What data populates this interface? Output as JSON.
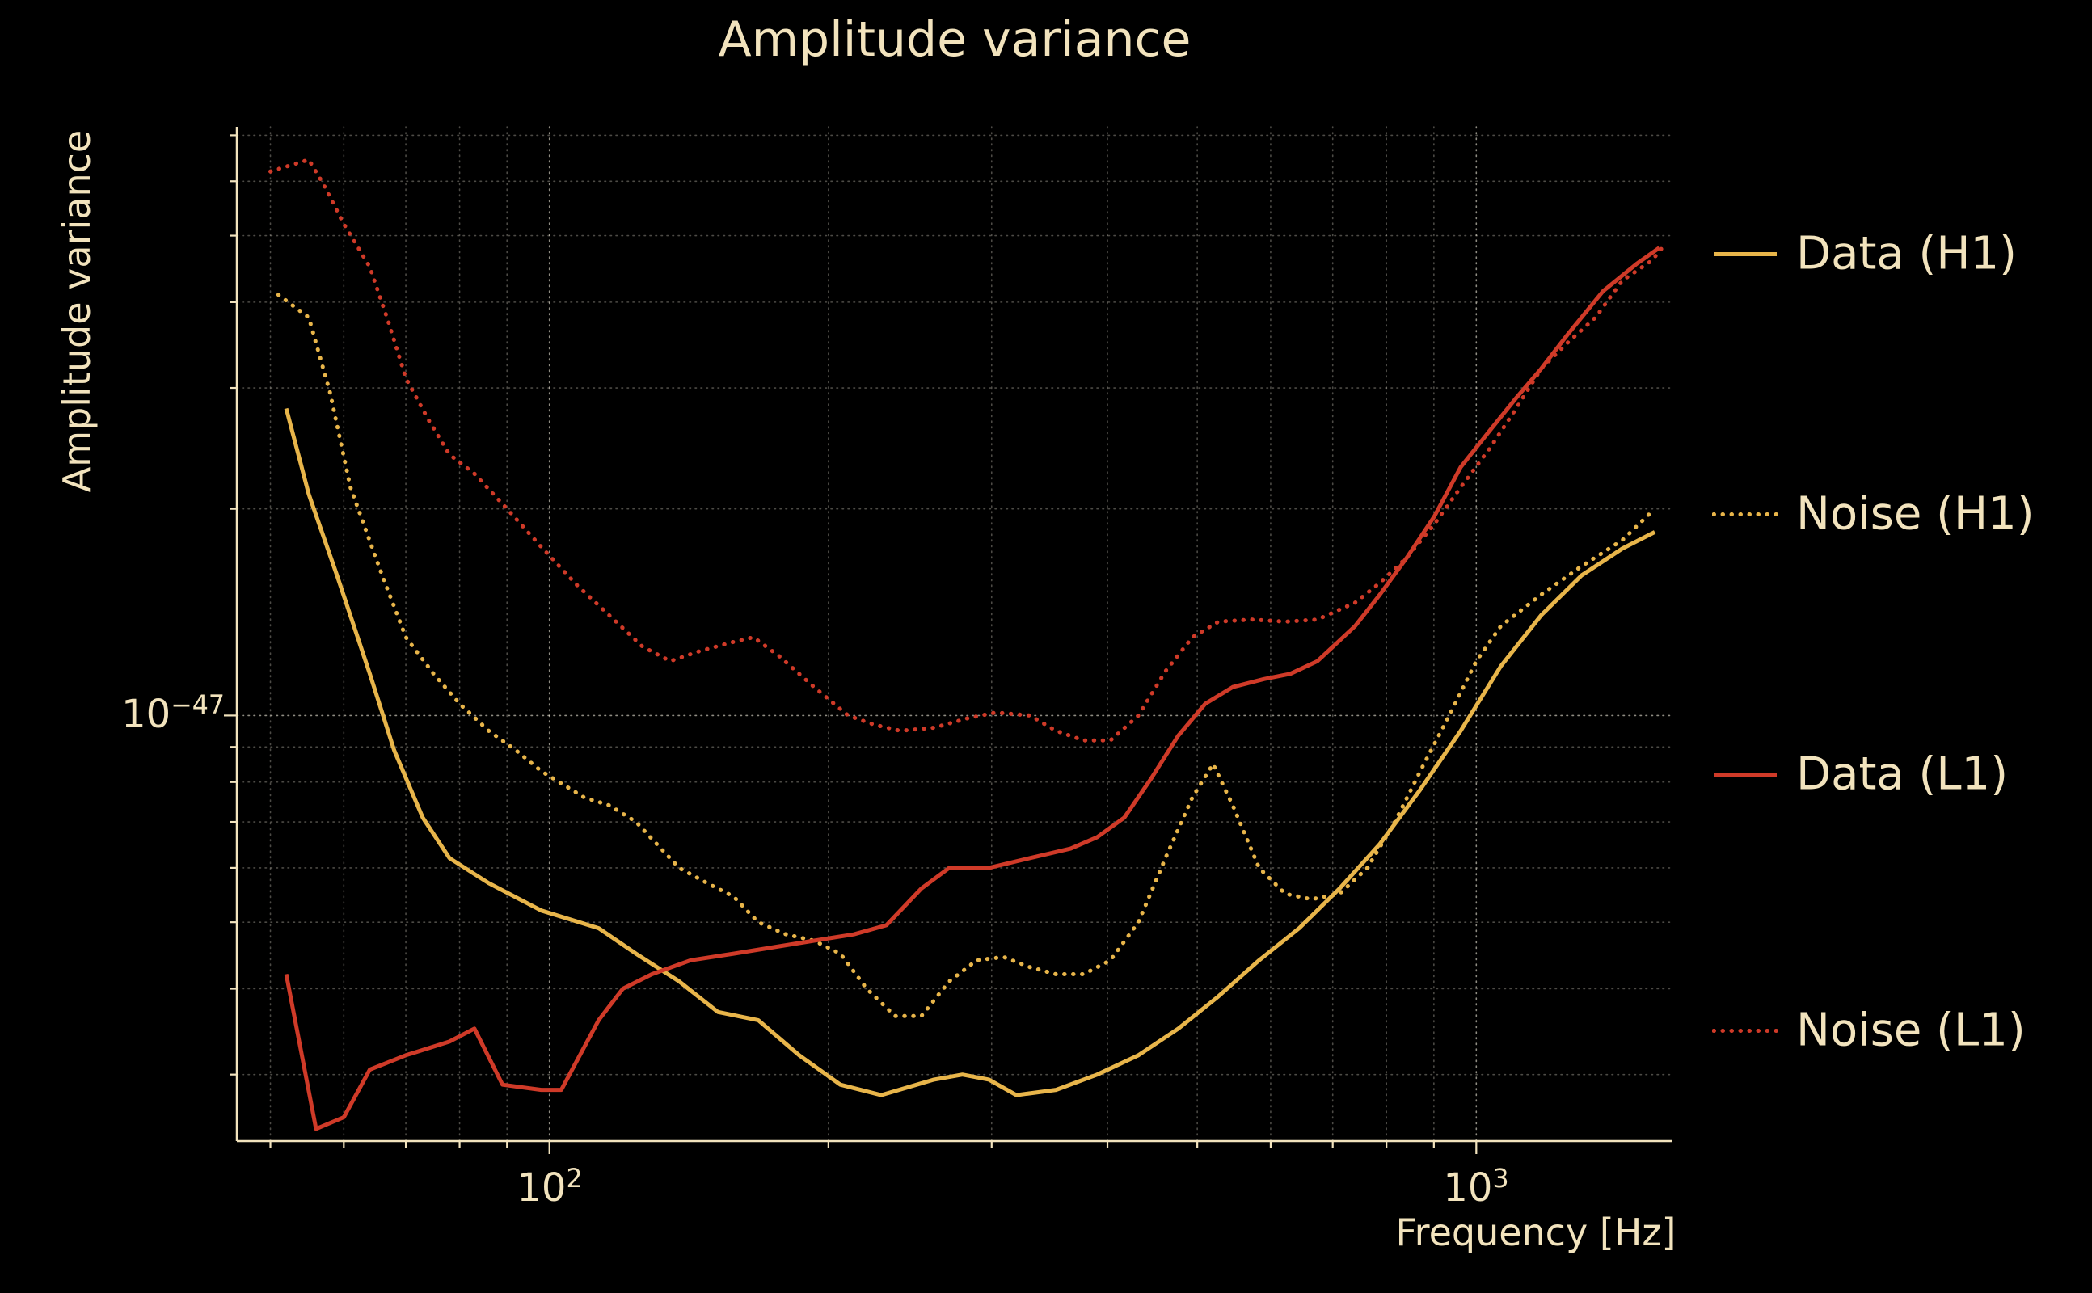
{
  "title": "Amplitude variance",
  "axes": {
    "x_label": "Frequency [Hz]",
    "y_label": "Amplitude variance",
    "x_ticks": [
      {
        "base": "10",
        "exp": "2"
      },
      {
        "base": "10",
        "exp": "3"
      }
    ],
    "y_ticks": [
      {
        "base": "10",
        "exp": "−47"
      }
    ]
  },
  "colors": {
    "background": "#000000",
    "text": "#f2e3bd",
    "grid": "#efe9d9",
    "h1": "#e8b54a",
    "l1": "#cf3a28"
  },
  "chart_data": {
    "type": "line",
    "title": "Amplitude variance",
    "xlabel": "Frequency [Hz]",
    "ylabel": "Amplitude variance",
    "xscale": "log",
    "yscale": "log",
    "xlim": [
      46,
      1628
    ],
    "ylim": [
      2.4e-48,
      7.2e-47
    ],
    "grid": true,
    "legend_position": "right-outside",
    "series": [
      {
        "id": "data-h1",
        "name": "Data (H1)",
        "color": "#e8b54a",
        "style": "solid",
        "points": [
          [
            52,
            2.8e-47
          ],
          [
            55,
            2.1e-47
          ],
          [
            59,
            1.6e-47
          ],
          [
            64,
            1.15e-47
          ],
          [
            68,
            8.9e-48
          ],
          [
            73,
            7.1e-48
          ],
          [
            78,
            6.2e-48
          ],
          [
            86,
            5.7e-48
          ],
          [
            98,
            5.2e-48
          ],
          [
            113,
            4.9e-48
          ],
          [
            124,
            4.5e-48
          ],
          [
            138,
            4.1e-48
          ],
          [
            152,
            3.7e-48
          ],
          [
            168,
            3.6e-48
          ],
          [
            186,
            3.2e-48
          ],
          [
            206,
            2.9e-48
          ],
          [
            228,
            2.8e-48
          ],
          [
            260,
            2.95e-48
          ],
          [
            279,
            3e-48
          ],
          [
            298,
            2.95e-48
          ],
          [
            319,
            2.8e-48
          ],
          [
            352,
            2.85e-48
          ],
          [
            390,
            3e-48
          ],
          [
            432,
            3.2e-48
          ],
          [
            477,
            3.5e-48
          ],
          [
            527,
            3.9e-48
          ],
          [
            583,
            4.4e-48
          ],
          [
            644,
            4.9e-48
          ],
          [
            712,
            5.6e-48
          ],
          [
            787,
            6.5e-48
          ],
          [
            870,
            7.8e-48
          ],
          [
            962,
            9.5e-48
          ],
          [
            1063,
            1.18e-47
          ],
          [
            1175,
            1.4e-47
          ],
          [
            1299,
            1.6e-47
          ],
          [
            1437,
            1.75e-47
          ],
          [
            1558,
            1.85e-47
          ]
        ]
      },
      {
        "id": "noise-h1",
        "name": "Noise (H1)",
        "color": "#e8b54a",
        "style": "dotted",
        "points": [
          [
            51,
            4.1e-47
          ],
          [
            55,
            3.8e-47
          ],
          [
            58,
            2.95e-47
          ],
          [
            61,
            2.15e-47
          ],
          [
            66,
            1.6e-47
          ],
          [
            70,
            1.3e-47
          ],
          [
            75,
            1.15e-47
          ],
          [
            80,
            1.04e-47
          ],
          [
            86,
            9.5e-48
          ],
          [
            92,
            8.9e-48
          ],
          [
            98,
            8.3e-48
          ],
          [
            109,
            7.6e-48
          ],
          [
            116,
            7.4e-48
          ],
          [
            124,
            7e-48
          ],
          [
            138,
            6e-48
          ],
          [
            148,
            5.7e-48
          ],
          [
            158,
            5.45e-48
          ],
          [
            168,
            5e-48
          ],
          [
            180,
            4.8e-48
          ],
          [
            193,
            4.7e-48
          ],
          [
            206,
            4.5e-48
          ],
          [
            220,
            4e-48
          ],
          [
            236,
            3.65e-48
          ],
          [
            252,
            3.65e-48
          ],
          [
            270,
            4.1e-48
          ],
          [
            289,
            4.4e-48
          ],
          [
            309,
            4.45e-48
          ],
          [
            330,
            4.3e-48
          ],
          [
            352,
            4.2e-48
          ],
          [
            377,
            4.2e-48
          ],
          [
            403,
            4.4e-48
          ],
          [
            432,
            5e-48
          ],
          [
            462,
            6.2e-48
          ],
          [
            494,
            7.6e-48
          ],
          [
            520,
            8.5e-48
          ],
          [
            546,
            7.4e-48
          ],
          [
            583,
            6e-48
          ],
          [
            622,
            5.5e-48
          ],
          [
            664,
            5.4e-48
          ],
          [
            712,
            5.5e-48
          ],
          [
            763,
            6e-48
          ],
          [
            817,
            7e-48
          ],
          [
            870,
            8.3e-48
          ],
          [
            935,
            1e-47
          ],
          [
            1000,
            1.2e-47
          ],
          [
            1063,
            1.35e-47
          ],
          [
            1175,
            1.5e-47
          ],
          [
            1299,
            1.65e-47
          ],
          [
            1437,
            1.8e-47
          ],
          [
            1558,
            2e-47
          ]
        ]
      },
      {
        "id": "data-l1",
        "name": "Data (L1)",
        "color": "#cf3a28",
        "style": "solid",
        "points": [
          [
            52,
            4.2e-48
          ],
          [
            56,
            2.5e-48
          ],
          [
            60,
            2.6e-48
          ],
          [
            64,
            3.05e-48
          ],
          [
            70,
            3.2e-48
          ],
          [
            78,
            3.35e-48
          ],
          [
            83,
            3.5e-48
          ],
          [
            89,
            2.9e-48
          ],
          [
            98,
            2.85e-48
          ],
          [
            103,
            2.85e-48
          ],
          [
            113,
            3.6e-48
          ],
          [
            120,
            4e-48
          ],
          [
            129,
            4.2e-48
          ],
          [
            142,
            4.4e-48
          ],
          [
            158,
            4.5e-48
          ],
          [
            175,
            4.6e-48
          ],
          [
            193,
            4.7e-48
          ],
          [
            213,
            4.8e-48
          ],
          [
            231,
            4.95e-48
          ],
          [
            252,
            5.6e-48
          ],
          [
            270,
            6e-48
          ],
          [
            298,
            6e-48
          ],
          [
            330,
            6.2e-48
          ],
          [
            365,
            6.4e-48
          ],
          [
            390,
            6.65e-48
          ],
          [
            417,
            7.1e-48
          ],
          [
            446,
            8.1e-48
          ],
          [
            477,
            9.35e-48
          ],
          [
            510,
            1.04e-47
          ],
          [
            546,
            1.1e-47
          ],
          [
            590,
            1.13e-47
          ],
          [
            630,
            1.15e-47
          ],
          [
            674,
            1.2e-47
          ],
          [
            740,
            1.35e-47
          ],
          [
            787,
            1.5e-47
          ],
          [
            842,
            1.7e-47
          ],
          [
            901,
            1.95e-47
          ],
          [
            962,
            2.3e-47
          ],
          [
            1034,
            2.6e-47
          ],
          [
            1104,
            2.9e-47
          ],
          [
            1175,
            3.2e-47
          ],
          [
            1257,
            3.6e-47
          ],
          [
            1370,
            4.15e-47
          ],
          [
            1490,
            4.55e-47
          ],
          [
            1576,
            4.8e-47
          ]
        ]
      },
      {
        "id": "noise-l1",
        "name": "Noise (L1)",
        "color": "#cf3a28",
        "style": "dotted",
        "points": [
          [
            50,
            6.2e-47
          ],
          [
            55,
            6.45e-47
          ],
          [
            57,
            5.95e-47
          ],
          [
            60,
            5.2e-47
          ],
          [
            64,
            4.5e-47
          ],
          [
            67,
            3.75e-47
          ],
          [
            70,
            3.1e-47
          ],
          [
            74,
            2.7e-47
          ],
          [
            78,
            2.4e-47
          ],
          [
            83,
            2.25e-47
          ],
          [
            90,
            2e-47
          ],
          [
            98,
            1.76e-47
          ],
          [
            107,
            1.55e-47
          ],
          [
            116,
            1.4e-47
          ],
          [
            126,
            1.26e-47
          ],
          [
            135,
            1.2e-47
          ],
          [
            145,
            1.24e-47
          ],
          [
            158,
            1.28e-47
          ],
          [
            166,
            1.3e-47
          ],
          [
            177,
            1.22e-47
          ],
          [
            193,
            1.1e-47
          ],
          [
            210,
            1e-47
          ],
          [
            224,
            9.7e-48
          ],
          [
            239,
            9.5e-48
          ],
          [
            260,
            9.6e-48
          ],
          [
            282,
            9.9e-48
          ],
          [
            303,
            1.01e-47
          ],
          [
            330,
            1e-47
          ],
          [
            352,
            9.5e-48
          ],
          [
            377,
            9.2e-48
          ],
          [
            403,
            9.2e-48
          ],
          [
            432,
            1e-47
          ],
          [
            462,
            1.16e-47
          ],
          [
            494,
            1.3e-47
          ],
          [
            527,
            1.37e-47
          ],
          [
            572,
            1.38e-47
          ],
          [
            622,
            1.37e-47
          ],
          [
            674,
            1.38e-47
          ],
          [
            740,
            1.46e-47
          ],
          [
            787,
            1.56e-47
          ],
          [
            842,
            1.7e-47
          ],
          [
            901,
            1.9e-47
          ],
          [
            962,
            2.15e-47
          ],
          [
            1034,
            2.45e-47
          ],
          [
            1104,
            2.8e-47
          ],
          [
            1175,
            3.2e-47
          ],
          [
            1257,
            3.5e-47
          ],
          [
            1345,
            3.8e-47
          ],
          [
            1437,
            4.3e-47
          ],
          [
            1547,
            4.6e-47
          ],
          [
            1587,
            4.8e-47
          ]
        ]
      }
    ]
  }
}
